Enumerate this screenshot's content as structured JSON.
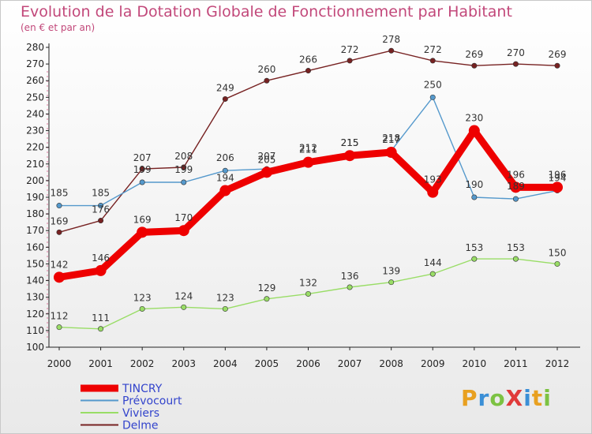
{
  "header": {
    "title": "Evolution de la Dotation Globale de Fonctionnement par Habitant",
    "subtitle": "(en € et par an)"
  },
  "logo": {
    "text": "ProXiti",
    "letters": [
      "P",
      "r",
      "o",
      "X",
      "i",
      "t",
      "i"
    ]
  },
  "chart_data": {
    "type": "line",
    "title": "Evolution de la Dotation Globale de Fonctionnement par Habitant",
    "subtitle": "(en € et par an)",
    "xlabel": "",
    "ylabel": "",
    "x": [
      "2000",
      "2001",
      "2002",
      "2003",
      "2004",
      "2005",
      "2006",
      "2007",
      "2008",
      "2009",
      "2010",
      "2011",
      "2012"
    ],
    "ylim": [
      100,
      280
    ],
    "yticks": [
      100,
      110,
      120,
      130,
      140,
      150,
      160,
      170,
      180,
      190,
      200,
      210,
      220,
      230,
      240,
      250,
      260,
      270,
      280
    ],
    "grid": false,
    "legend": "bottom-left",
    "series": [
      {
        "name": "TINCRY",
        "color": "#ee0000",
        "values": [
          142,
          146,
          169,
          170,
          194,
          205,
          211,
          215,
          217,
          193,
          230,
          196,
          196
        ]
      },
      {
        "name": "Prévocourt",
        "color": "#5599cc",
        "values": [
          185,
          185,
          199,
          199,
          206,
          207,
          212,
          215,
          218,
          250,
          190,
          189,
          194
        ]
      },
      {
        "name": "Viviers",
        "color": "#99dd66",
        "values": [
          112,
          111,
          123,
          124,
          123,
          129,
          132,
          136,
          139,
          144,
          153,
          153,
          150
        ]
      },
      {
        "name": "Delme",
        "color": "#772222",
        "values": [
          169,
          176,
          207,
          208,
          249,
          260,
          266,
          272,
          278,
          272,
          269,
          270,
          269
        ]
      }
    ]
  }
}
